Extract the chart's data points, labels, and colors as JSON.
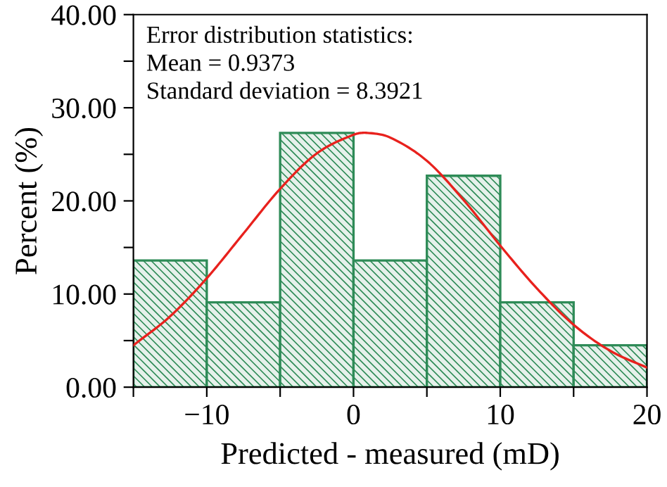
{
  "chart_data": {
    "type": "histogram",
    "xlabel": "Predicted - measured (mD)",
    "ylabel": "Percent (%)",
    "bins": [
      -15,
      -10,
      -5,
      0,
      5,
      10,
      15,
      20
    ],
    "values": [
      13.6,
      9.1,
      27.3,
      13.6,
      22.7,
      9.1,
      4.5
    ],
    "color": "#2e8b57",
    "series": [
      {
        "type": "line",
        "color": "#e8211d",
        "x": [
          -15,
          -12.5,
          -10,
          -7.5,
          -5,
          -2.5,
          0,
          0.94,
          2.5,
          5,
          7.5,
          10,
          12.5,
          15,
          17.5,
          20
        ],
        "values": [
          4.5,
          7.6,
          11.7,
          16.5,
          21.3,
          25.1,
          27.1,
          27.3,
          26.8,
          24.3,
          20.1,
          15.2,
          10.6,
          6.7,
          3.9,
          2.1
        ]
      }
    ],
    "xlim": [
      -15,
      20
    ],
    "ylim": [
      0,
      40
    ],
    "xticks": [
      {
        "value": -15,
        "label": null
      },
      -10,
      {
        "value": -5,
        "label": null
      },
      0,
      {
        "value": 5,
        "label": null
      },
      10,
      {
        "value": 15,
        "label": null
      },
      20
    ],
    "yticks": [
      {
        "value": 0,
        "label": "0.00"
      },
      {
        "value": 5,
        "label": null
      },
      {
        "value": 10,
        "label": "10.00"
      },
      {
        "value": 15,
        "label": null
      },
      {
        "value": 20,
        "label": "20.00"
      },
      {
        "value": 25,
        "label": null
      },
      {
        "value": 30,
        "label": "30.00"
      },
      {
        "value": 35,
        "label": null
      },
      {
        "value": 40,
        "label": "40.00"
      }
    ],
    "annotations": [
      "Error distribution statistics:",
      "Mean = 0.9373",
      "Standard deviation = 8.3921"
    ],
    "grid": false,
    "legend": false
  }
}
